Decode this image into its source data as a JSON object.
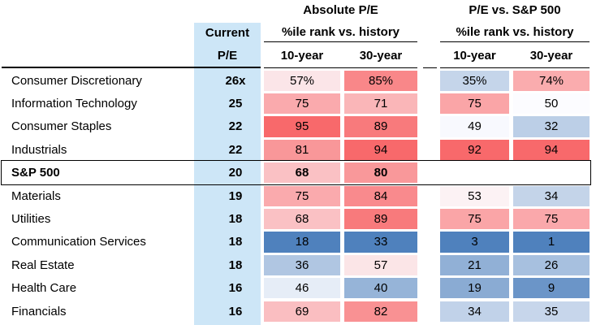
{
  "header": {
    "group1_title": "Absolute P/E",
    "group2_title": "P/E vs. S&P 500",
    "subtitle1": "%ile rank vs. history",
    "subtitle2": "%ile rank vs. history",
    "current_line1": "Current",
    "current_line2": "P/E",
    "abs_10yr": "10-year",
    "abs_30yr": "30-year",
    "rel_10yr": "10-year",
    "rel_30yr": "30-year"
  },
  "colors": {
    "current_column_bg": "#CDE6F7",
    "scale_red": "#F8696B",
    "scale_mid": "#FCFCFF",
    "scale_blue": "#4F81BD",
    "scale_midpoint": 50
  },
  "chart_data": {
    "type": "heatmap",
    "column_groups": [
      "Absolute P/E %ile rank vs. history",
      "P/E vs. S&P 500 %ile rank vs. history"
    ],
    "columns": [
      "Current P/E",
      "Absolute 10-year",
      "Absolute 30-year",
      "vs. S&P 500 10-year",
      "vs. S&P 500 30-year"
    ],
    "rows": [
      {
        "label": "Consumer Discretionary",
        "pe": "26x",
        "bold": false,
        "boxed": false,
        "cells": [
          {
            "v": 57,
            "t": "57%"
          },
          {
            "v": 85,
            "t": "85%"
          },
          {
            "v": 35,
            "t": "35%"
          },
          {
            "v": 74,
            "t": "74%"
          }
        ]
      },
      {
        "label": "Information Technology",
        "pe": "25",
        "bold": false,
        "boxed": false,
        "cells": [
          {
            "v": 75
          },
          {
            "v": 71
          },
          {
            "v": 75
          },
          {
            "v": 50
          }
        ]
      },
      {
        "label": "Consumer Staples",
        "pe": "22",
        "bold": false,
        "boxed": false,
        "cells": [
          {
            "v": 95
          },
          {
            "v": 89
          },
          {
            "v": 49
          },
          {
            "v": 32
          }
        ]
      },
      {
        "label": "Industrials",
        "pe": "22",
        "bold": false,
        "boxed": false,
        "cells": [
          {
            "v": 81
          },
          {
            "v": 94
          },
          {
            "v": 92
          },
          {
            "v": 94
          }
        ]
      },
      {
        "label": "S&P 500",
        "pe": "20",
        "bold": true,
        "boxed": true,
        "cells": [
          {
            "v": 68
          },
          {
            "v": 80
          },
          null,
          null
        ]
      },
      {
        "label": "Materials",
        "pe": "19",
        "bold": false,
        "boxed": false,
        "cells": [
          {
            "v": 75
          },
          {
            "v": 84
          },
          {
            "v": 53
          },
          {
            "v": 34
          }
        ]
      },
      {
        "label": "Utilities",
        "pe": "18",
        "bold": false,
        "boxed": false,
        "cells": [
          {
            "v": 68
          },
          {
            "v": 89
          },
          {
            "v": 75
          },
          {
            "v": 75
          }
        ]
      },
      {
        "label": "Communication Services",
        "pe": "18",
        "bold": false,
        "boxed": false,
        "cells": [
          {
            "v": 18
          },
          {
            "v": 33
          },
          {
            "v": 3
          },
          {
            "v": 1
          }
        ]
      },
      {
        "label": "Real Estate",
        "pe": "18",
        "bold": false,
        "boxed": false,
        "cells": [
          {
            "v": 36
          },
          {
            "v": 57
          },
          {
            "v": 21
          },
          {
            "v": 26
          }
        ]
      },
      {
        "label": "Health Care",
        "pe": "16",
        "bold": false,
        "boxed": false,
        "cells": [
          {
            "v": 46
          },
          {
            "v": 40
          },
          {
            "v": 19
          },
          {
            "v": 9
          }
        ]
      },
      {
        "label": "Financials",
        "pe": "16",
        "bold": false,
        "boxed": false,
        "cells": [
          {
            "v": 69
          },
          {
            "v": 82
          },
          {
            "v": 34
          },
          {
            "v": 35
          }
        ]
      }
    ]
  }
}
